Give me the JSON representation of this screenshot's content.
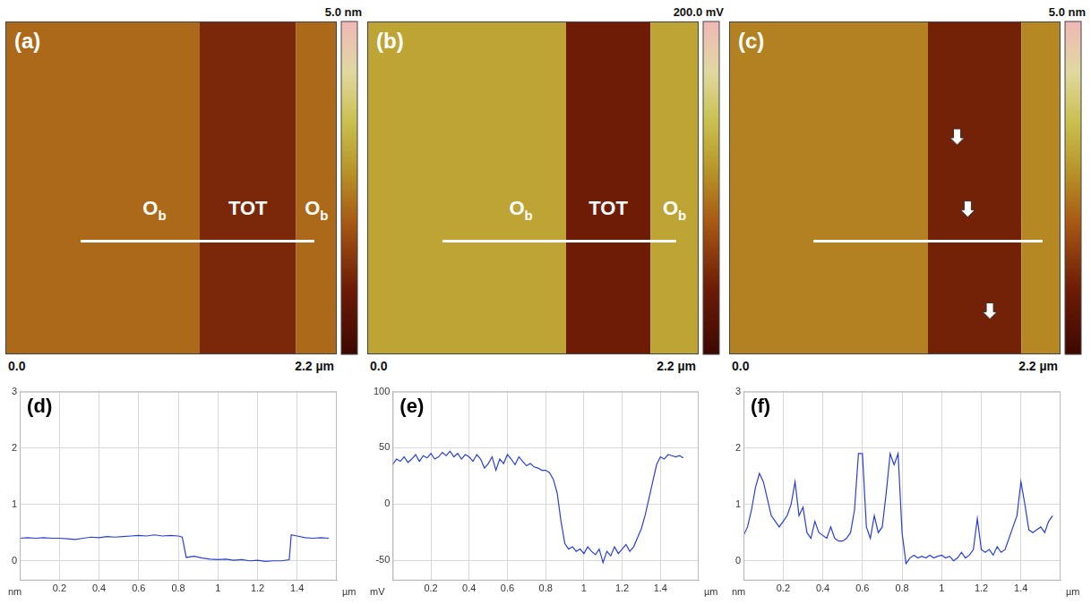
{
  "chart_data": [
    {
      "type": "image",
      "panel": "(a)",
      "xlim": [
        0,
        2.2
      ],
      "xticks": [
        {
          "value": 0,
          "label": "0.0"
        },
        {
          "value": 2.2,
          "label": "2.2 µm"
        }
      ],
      "colorbar": {
        "range": [
          0,
          5
        ],
        "ticks": [
          {
            "value": 5,
            "label": "5.0 nm"
          }
        ]
      },
      "regions": [
        {
          "label": "O",
          "subscript": "b",
          "x": [
            0,
            1.29
          ],
          "value": 2.2
        },
        {
          "label": "TOT",
          "x": [
            1.29,
            1.93
          ],
          "value": 1.2
        },
        {
          "label": "O",
          "subscript": "b",
          "x": [
            1.93,
            2.2
          ],
          "value": 2.2
        }
      ],
      "profile_line": {
        "x": [
          0.5,
          2.05
        ]
      }
    },
    {
      "type": "image",
      "panel": "(b)",
      "xlim": [
        0,
        2.2
      ],
      "xticks": [
        {
          "value": 0,
          "label": "0.0"
        },
        {
          "value": 2.2,
          "label": "2.2 µm"
        }
      ],
      "colorbar": {
        "range": [
          0,
          200
        ],
        "ticks": [
          {
            "value": 200,
            "label": "200.0 mV"
          }
        ]
      },
      "regions": [
        {
          "label": "O",
          "subscript": "b",
          "x": [
            0,
            1.32
          ],
          "value": 120
        },
        {
          "label": "TOT",
          "x": [
            1.32,
            1.88
          ],
          "value": 40
        },
        {
          "label": "O",
          "subscript": "b",
          "x": [
            1.88,
            2.2
          ],
          "value": 120
        }
      ],
      "profile_line": {
        "x": [
          0.5,
          2.05
        ]
      }
    },
    {
      "type": "image",
      "panel": "(c)",
      "xlim": [
        0,
        2.2
      ],
      "xticks": [
        {
          "value": 0,
          "label": "0.0"
        },
        {
          "value": 2.2,
          "label": "2.2 µm"
        }
      ],
      "colorbar": {
        "range": [
          0,
          5
        ],
        "ticks": [
          {
            "value": 5,
            "label": "5.0 nm"
          }
        ]
      },
      "regions": [
        {
          "x": [
            0,
            1.32
          ],
          "value": 2.5
        },
        {
          "x": [
            1.32,
            1.94
          ],
          "value": 1.1
        },
        {
          "x": [
            1.94,
            2.2
          ],
          "value": 2.6
        }
      ],
      "profile_line": {
        "x": [
          0.56,
          2.08
        ]
      }
    },
    {
      "type": "line",
      "panel": "(d)",
      "color": "#2a3fd8",
      "grid": true,
      "xlabel": "µm",
      "ylabel": "nm",
      "xlim": [
        0,
        1.6
      ],
      "xticks": [
        0.2,
        0.4,
        0.6,
        0.8,
        1,
        1.2,
        1.4
      ],
      "ylim": [
        -0.35,
        3
      ],
      "yticks": [
        0,
        1,
        2,
        3
      ],
      "x": [
        0,
        0.04,
        0.08,
        0.12,
        0.16,
        0.2,
        0.24,
        0.28,
        0.32,
        0.36,
        0.4,
        0.44,
        0.48,
        0.52,
        0.56,
        0.6,
        0.64,
        0.68,
        0.72,
        0.76,
        0.8,
        0.82,
        0.84,
        0.88,
        0.92,
        0.96,
        1.0,
        1.04,
        1.08,
        1.12,
        1.16,
        1.2,
        1.24,
        1.28,
        1.32,
        1.36,
        1.37,
        1.4,
        1.44,
        1.48,
        1.52,
        1.56
      ],
      "values": [
        0.4,
        0.41,
        0.4,
        0.41,
        0.4,
        0.4,
        0.39,
        0.38,
        0.4,
        0.42,
        0.41,
        0.43,
        0.42,
        0.43,
        0.44,
        0.45,
        0.44,
        0.46,
        0.44,
        0.45,
        0.44,
        0.42,
        0.06,
        0.08,
        0.05,
        0.03,
        0.02,
        0.03,
        0.01,
        0.02,
        0.0,
        0.01,
        -0.01,
        0.0,
        0.0,
        0.02,
        0.46,
        0.44,
        0.41,
        0.4,
        0.41,
        0.4
      ]
    },
    {
      "type": "line",
      "panel": "(e)",
      "color": "#2a3fd8",
      "grid": true,
      "xlabel": "µm",
      "ylabel": "mV",
      "xlim": [
        0,
        1.6
      ],
      "xticks": [
        0.2,
        0.4,
        0.6,
        0.8,
        1,
        1.2,
        1.4
      ],
      "ylim": [
        -68,
        100
      ],
      "yticks": [
        -50,
        0,
        50,
        100
      ],
      "x": [
        0,
        0.02,
        0.04,
        0.06,
        0.08,
        0.1,
        0.12,
        0.14,
        0.16,
        0.18,
        0.2,
        0.22,
        0.24,
        0.26,
        0.28,
        0.3,
        0.32,
        0.34,
        0.36,
        0.38,
        0.4,
        0.42,
        0.44,
        0.46,
        0.48,
        0.5,
        0.52,
        0.54,
        0.56,
        0.58,
        0.6,
        0.62,
        0.64,
        0.66,
        0.68,
        0.7,
        0.72,
        0.74,
        0.76,
        0.78,
        0.8,
        0.82,
        0.84,
        0.86,
        0.88,
        0.9,
        0.92,
        0.94,
        0.96,
        0.98,
        1.0,
        1.02,
        1.04,
        1.06,
        1.08,
        1.1,
        1.12,
        1.14,
        1.16,
        1.18,
        1.2,
        1.22,
        1.24,
        1.26,
        1.28,
        1.3,
        1.32,
        1.34,
        1.36,
        1.38,
        1.4,
        1.42,
        1.44,
        1.46,
        1.48,
        1.5,
        1.52
      ],
      "values": [
        35,
        40,
        38,
        42,
        37,
        40,
        44,
        38,
        43,
        41,
        45,
        40,
        42,
        46,
        43,
        47,
        42,
        45,
        40,
        44,
        42,
        38,
        44,
        40,
        32,
        36,
        42,
        30,
        40,
        36,
        44,
        40,
        35,
        42,
        38,
        34,
        36,
        33,
        32,
        30,
        30,
        28,
        22,
        10,
        -15,
        -35,
        -40,
        -38,
        -42,
        -40,
        -44,
        -38,
        -42,
        -45,
        -40,
        -52,
        -42,
        -46,
        -38,
        -44,
        -40,
        -36,
        -42,
        -38,
        -30,
        -22,
        -10,
        5,
        20,
        35,
        42,
        40,
        44,
        43,
        42,
        43,
        41
      ]
    },
    {
      "type": "line",
      "panel": "(f)",
      "color": "#2a3fd8",
      "grid": true,
      "xlabel": "µm",
      "ylabel": "nm",
      "xlim": [
        0,
        1.6
      ],
      "xticks": [
        0.2,
        0.4,
        0.6,
        0.8,
        1,
        1.2,
        1.4
      ],
      "ylim": [
        -0.35,
        3
      ],
      "yticks": [
        0,
        1,
        2,
        3
      ],
      "x": [
        0,
        0.02,
        0.04,
        0.06,
        0.08,
        0.1,
        0.12,
        0.14,
        0.16,
        0.18,
        0.2,
        0.22,
        0.24,
        0.26,
        0.28,
        0.3,
        0.32,
        0.34,
        0.36,
        0.38,
        0.4,
        0.42,
        0.44,
        0.46,
        0.48,
        0.5,
        0.52,
        0.54,
        0.56,
        0.58,
        0.6,
        0.62,
        0.64,
        0.66,
        0.68,
        0.7,
        0.72,
        0.74,
        0.76,
        0.78,
        0.8,
        0.82,
        0.84,
        0.86,
        0.88,
        0.9,
        0.92,
        0.94,
        0.96,
        0.98,
        1.0,
        1.02,
        1.04,
        1.06,
        1.08,
        1.1,
        1.12,
        1.14,
        1.16,
        1.18,
        1.2,
        1.22,
        1.24,
        1.26,
        1.28,
        1.3,
        1.32,
        1.34,
        1.36,
        1.38,
        1.4,
        1.42,
        1.44,
        1.46,
        1.48,
        1.5,
        1.52,
        1.54,
        1.56
      ],
      "values": [
        0.45,
        0.6,
        0.9,
        1.3,
        1.55,
        1.4,
        1.1,
        0.8,
        0.7,
        0.6,
        0.7,
        0.8,
        1.0,
        1.4,
        0.8,
        0.95,
        0.5,
        0.4,
        0.7,
        0.5,
        0.45,
        0.4,
        0.6,
        0.4,
        0.35,
        0.35,
        0.4,
        0.5,
        0.9,
        1.9,
        1.9,
        0.6,
        0.4,
        0.8,
        0.5,
        0.6,
        1.2,
        1.9,
        1.7,
        1.9,
        0.5,
        -0.05,
        0.05,
        0.1,
        0.05,
        0.08,
        0.05,
        0.1,
        0.05,
        0.08,
        0.1,
        0.05,
        0.08,
        0.0,
        0.05,
        0.15,
        0.05,
        0.1,
        0.2,
        0.75,
        0.2,
        0.15,
        0.2,
        0.1,
        0.25,
        0.15,
        0.2,
        0.4,
        0.6,
        0.8,
        1.4,
        1.0,
        0.55,
        0.5,
        0.55,
        0.6,
        0.5,
        0.7,
        0.8
      ]
    }
  ]
}
